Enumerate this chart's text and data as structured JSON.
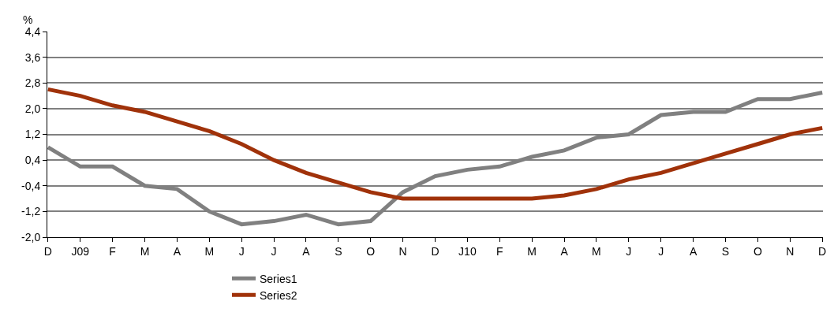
{
  "chart_data": {
    "type": "line",
    "ylabel": "%",
    "categories": [
      "D",
      "J09",
      "F",
      "M",
      "A",
      "M",
      "J",
      "J",
      "A",
      "S",
      "O",
      "N",
      "D",
      "J10",
      "F",
      "M",
      "A",
      "M",
      "J",
      "J",
      "A",
      "S",
      "O",
      "N",
      "D"
    ],
    "series": [
      {
        "name": "Series1",
        "color": "#808080",
        "values": [
          0.8,
          0.2,
          0.2,
          -0.4,
          -0.5,
          -1.2,
          -1.6,
          -1.5,
          -1.3,
          -1.6,
          -1.5,
          -0.6,
          -0.1,
          0.1,
          0.2,
          0.5,
          0.7,
          1.1,
          1.2,
          1.8,
          1.9,
          1.9,
          2.3,
          2.3,
          2.5
        ]
      },
      {
        "name": "Series2",
        "color": "#a0320a",
        "values": [
          2.6,
          2.4,
          2.1,
          1.9,
          1.6,
          1.3,
          0.9,
          0.4,
          0.0,
          -0.3,
          -0.6,
          -0.8,
          -0.8,
          -0.8,
          -0.8,
          -0.8,
          -0.7,
          -0.5,
          -0.2,
          0.0,
          0.3,
          0.6,
          0.9,
          1.2,
          1.4
        ]
      }
    ],
    "ylim": [
      -2.0,
      4.4
    ],
    "yticks": [
      {
        "value": -2.0,
        "label": "-2,0"
      },
      {
        "value": -1.2,
        "label": "-1,2"
      },
      {
        "value": -0.4,
        "label": "-0,4"
      },
      {
        "value": 0.4,
        "label": "0,4"
      },
      {
        "value": 1.2,
        "label": "1,2"
      },
      {
        "value": 2.0,
        "label": "2,0"
      },
      {
        "value": 2.8,
        "label": "2,8"
      },
      {
        "value": 3.6,
        "label": "3,6"
      },
      {
        "value": 4.4,
        "label": "4,4"
      }
    ],
    "grid": "y",
    "legend": "bottom",
    "marker": "none",
    "line_style": "solid"
  }
}
